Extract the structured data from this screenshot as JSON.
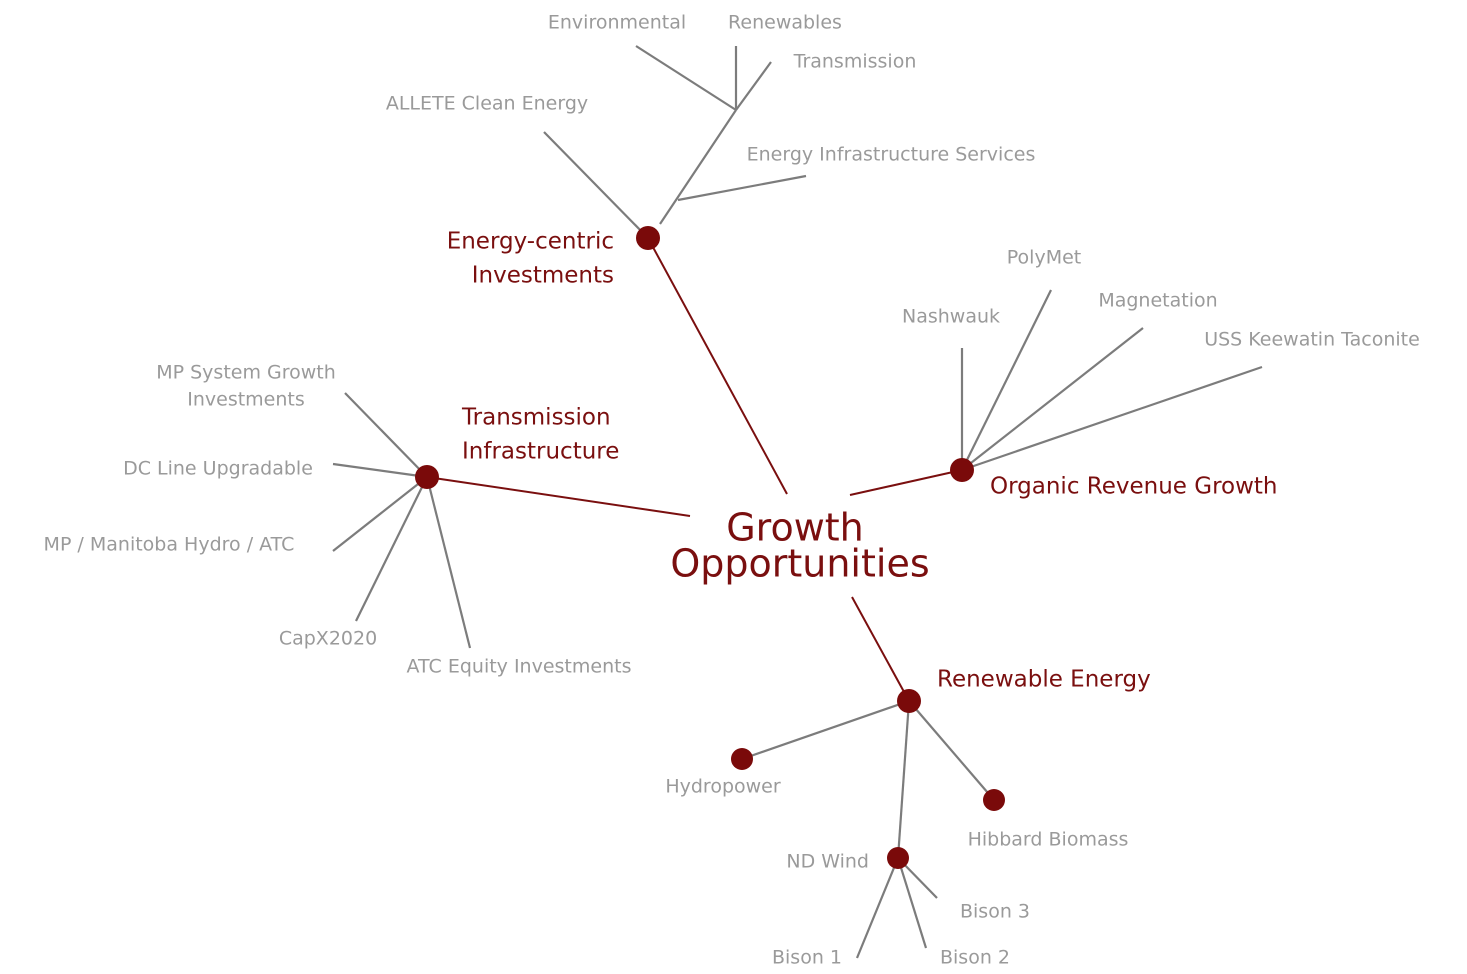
{
  "center": {
    "lines": [
      "Growth",
      "Opportunities"
    ]
  },
  "branches": [
    {
      "lines": [
        "Energy-centric",
        "Investments"
      ],
      "children": [
        {
          "lines": [
            "Environmental"
          ]
        },
        {
          "lines": [
            "Renewables"
          ]
        },
        {
          "lines": [
            "Transmission"
          ]
        },
        {
          "lines": [
            "Energy Infrastructure Services"
          ]
        },
        {
          "lines": [
            "ALLETE Clean Energy"
          ]
        }
      ]
    },
    {
      "lines": [
        "Organic Revenue Growth"
      ],
      "children": [
        {
          "lines": [
            "Nashwauk"
          ]
        },
        {
          "lines": [
            "PolyMet"
          ]
        },
        {
          "lines": [
            "Magnetation"
          ]
        },
        {
          "lines": [
            "USS Keewatin Taconite"
          ]
        }
      ]
    },
    {
      "lines": [
        "Transmission",
        "Infrastructure"
      ],
      "children": [
        {
          "lines": [
            "MP System Growth",
            "Investments"
          ]
        },
        {
          "lines": [
            "DC Line Upgradable"
          ]
        },
        {
          "lines": [
            "MP / Manitoba Hydro / ATC"
          ]
        },
        {
          "lines": [
            "CapX2020"
          ]
        },
        {
          "lines": [
            "ATC Equity Investments"
          ]
        }
      ]
    },
    {
      "lines": [
        "Renewable Energy"
      ],
      "children": [
        {
          "lines": [
            "Hydropower"
          ]
        },
        {
          "lines": [
            "Hibbard Biomass"
          ]
        },
        {
          "lines": [
            "ND Wind"
          ],
          "children": [
            {
              "lines": [
                "Bison 1"
              ]
            },
            {
              "lines": [
                "Bison 2"
              ]
            },
            {
              "lines": [
                "Bison 3"
              ]
            }
          ]
        }
      ]
    }
  ]
}
